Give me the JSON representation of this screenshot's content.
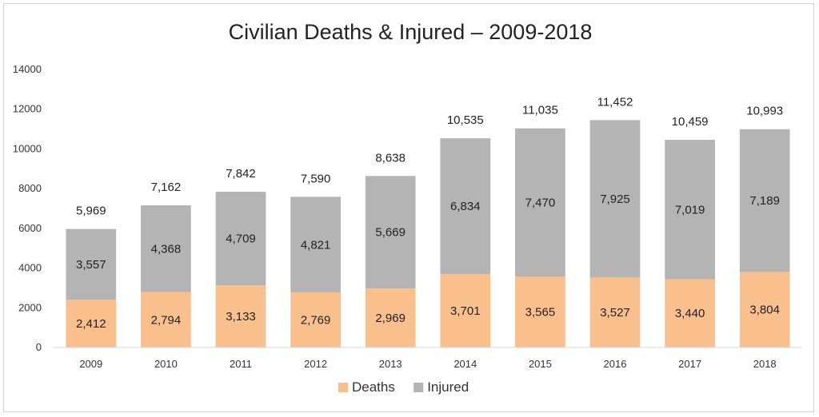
{
  "chart_data": {
    "type": "bar",
    "stacked": true,
    "title": "Civilian Deaths & Injured – 2009-2018",
    "xlabel": "",
    "ylabel": "",
    "ylim": [
      0,
      14000
    ],
    "yticks": [
      0,
      2000,
      4000,
      6000,
      8000,
      10000,
      12000,
      14000
    ],
    "grid": false,
    "legend_position": "bottom",
    "categories": [
      "2009",
      "2010",
      "2011",
      "2012",
      "2013",
      "2014",
      "2015",
      "2016",
      "2017",
      "2018"
    ],
    "series": [
      {
        "name": "Deaths",
        "color": "#f9c08d",
        "values": [
          2412,
          2794,
          3133,
          2769,
          2969,
          3701,
          3565,
          3527,
          3440,
          3804
        ],
        "labels": [
          "2,412",
          "2,794",
          "3,133",
          "2,769",
          "2,969",
          "3,701",
          "3,565",
          "3,527",
          "3,440",
          "3,804"
        ]
      },
      {
        "name": "Injured",
        "color": "#b4b4b4",
        "values": [
          3557,
          4368,
          4709,
          4821,
          5669,
          6834,
          7470,
          7925,
          7019,
          7189
        ],
        "labels": [
          "3,557",
          "4,368",
          "4,709",
          "4,821",
          "5,669",
          "6,834",
          "7,470",
          "7,925",
          "7,019",
          "7,189"
        ]
      }
    ],
    "totals": [
      5969,
      7162,
      7842,
      7590,
      8638,
      10535,
      11035,
      11452,
      10459,
      10993
    ],
    "total_labels": [
      "5,969",
      "7,162",
      "7,842",
      "7,590",
      "8,638",
      "10,535",
      "11,035",
      "11,452",
      "10,459",
      "10,993"
    ]
  }
}
